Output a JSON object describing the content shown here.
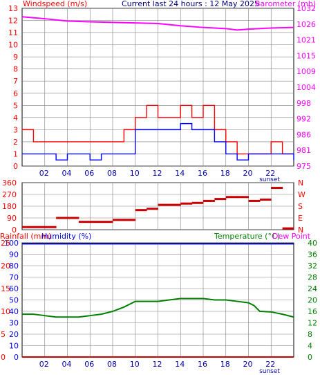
{
  "colors": {
    "wind_avg": "#0000ff",
    "wind_gust": "#ff0000",
    "barometer": "#ff00ff",
    "wind_dir": "#cc0000",
    "humidity": "#0000aa",
    "temperature": "#008000",
    "rainfall": "#cc0000",
    "grid": "#808080",
    "axis_left": "#ff0000",
    "axis_right_top": "#ff00ff",
    "axis_blue": "#0000ff",
    "axis_green": "#008000"
  },
  "chart_data": [
    {
      "type": "line",
      "title": "Current last 24 hours : 12 May 2025",
      "ylabel": "Windspeed (m/s)",
      "y2label": "Barometer (mb)",
      "ylim": [
        0,
        13
      ],
      "y2lim": [
        975,
        1031
      ],
      "yticks": [
        "0",
        "1",
        "2",
        "3",
        "4",
        "5",
        "6",
        "7",
        "8",
        "9",
        "10",
        "11",
        "12",
        "13"
      ],
      "y2ticks": [
        "975",
        "981",
        "986",
        "992",
        "998",
        "1004",
        "1009",
        "1015",
        "1021",
        "1026",
        "1032"
      ],
      "xticks": [
        "02",
        "04",
        "06",
        "08",
        "10",
        "12",
        "14",
        "16",
        "18",
        "20",
        "22"
      ],
      "annotation": "sunset",
      "series": [
        {
          "name": "Windspeed",
          "x": [
            0,
            1,
            2,
            3,
            4,
            5,
            6,
            7,
            8,
            9,
            10,
            11,
            12,
            13,
            14,
            15,
            16,
            17,
            18,
            19,
            20,
            21,
            22,
            23,
            24
          ],
          "values": [
            1,
            1,
            1,
            0.5,
            1,
            1,
            0.5,
            1,
            1,
            1,
            3,
            3,
            3,
            3,
            3.5,
            3,
            3,
            2,
            1,
            0.5,
            1,
            1,
            1,
            1,
            0.5
          ]
        },
        {
          "name": "Gust",
          "x": [
            0,
            1,
            2,
            3,
            4,
            5,
            6,
            7,
            8,
            9,
            10,
            11,
            12,
            13,
            14,
            15,
            16,
            17,
            18,
            19,
            20,
            21,
            22,
            23,
            24
          ],
          "values": [
            3,
            2,
            2,
            2,
            2,
            2,
            2,
            2,
            2,
            3,
            4,
            5,
            4,
            4,
            5,
            4,
            5,
            3,
            2,
            1,
            1,
            1,
            2,
            1,
            1
          ]
        },
        {
          "name": "Barometer",
          "x": [
            0,
            2,
            4,
            6,
            8,
            10,
            12,
            14,
            16,
            18,
            19,
            20,
            22,
            24
          ],
          "values": [
            1028,
            1027.3,
            1026.5,
            1026.2,
            1026,
            1025.8,
            1025.6,
            1024.8,
            1024.2,
            1023.8,
            1023.3,
            1023.6,
            1024,
            1024.2
          ]
        }
      ]
    },
    {
      "type": "scatter",
      "ylabel": "",
      "ylim": [
        0,
        360
      ],
      "yticks": [
        "0",
        "90",
        "180",
        "270",
        "360"
      ],
      "y2ticks": [
        "N",
        "E",
        "S",
        "W",
        "N"
      ],
      "series": [
        {
          "name": "Wind direction",
          "x": [
            0,
            0.5,
            1,
            1.5,
            2,
            2.5,
            3,
            3.5,
            4,
            4.5,
            5,
            5.5,
            6,
            6.5,
            7,
            7.5,
            8,
            8.5,
            9,
            9.5,
            10,
            10.5,
            11,
            11.5,
            12,
            12.5,
            13,
            13.5,
            14,
            14.5,
            15,
            15.5,
            16,
            16.5,
            17,
            17.5,
            18,
            18.5,
            19,
            19.5,
            20,
            20.5,
            21,
            21.5,
            22,
            22.5,
            23,
            23.5
          ],
          "values": [
            20,
            20,
            20,
            20,
            20,
            20,
            90,
            90,
            90,
            90,
            60,
            60,
            60,
            60,
            60,
            60,
            75,
            75,
            75,
            75,
            150,
            150,
            160,
            160,
            190,
            190,
            190,
            190,
            200,
            200,
            205,
            205,
            220,
            220,
            235,
            235,
            250,
            250,
            250,
            250,
            220,
            220,
            230,
            230,
            320,
            320,
            10,
            10
          ]
        }
      ]
    },
    {
      "type": "line",
      "ylabel": "Rainfall (mm)",
      "y1label": "Humidity (%)",
      "y2label": "Temperature (°C)",
      "y3label": "Dew Point",
      "ylim": [
        0,
        100
      ],
      "y2lim": [
        0,
        40
      ],
      "rainticks": [
        "0",
        "5",
        "10",
        "15",
        "20",
        "25"
      ],
      "humticks": [
        "0",
        "10",
        "20",
        "30",
        "40",
        "50",
        "60",
        "70",
        "80",
        "90",
        "100"
      ],
      "tempticks": [
        "0",
        "4",
        "8",
        "12",
        "16",
        "20",
        "24",
        "28",
        "32",
        "36",
        "40"
      ],
      "xticks": [
        "02",
        "04",
        "06",
        "08",
        "10",
        "12",
        "14",
        "16",
        "18",
        "20",
        "22"
      ],
      "annotation": "sunset",
      "series": [
        {
          "name": "Humidity",
          "x": [
            0,
            24
          ],
          "values": [
            100,
            100
          ]
        },
        {
          "name": "Temperature",
          "x": [
            0,
            1,
            2,
            3,
            4,
            5,
            6,
            7,
            8,
            9,
            10,
            11,
            12,
            13,
            14,
            15,
            16,
            17,
            18,
            19,
            20,
            20.5,
            21,
            22,
            23,
            24
          ],
          "values": [
            15,
            15,
            14.5,
            14,
            14,
            14,
            14.5,
            15,
            16,
            17.5,
            19.5,
            19.5,
            19.5,
            20,
            20.5,
            20.5,
            20.5,
            20,
            20,
            19.5,
            19,
            18,
            16,
            15.8,
            15,
            14
          ]
        },
        {
          "name": "Rainfall",
          "x": [
            0,
            24
          ],
          "values": [
            0,
            0
          ]
        }
      ]
    }
  ]
}
